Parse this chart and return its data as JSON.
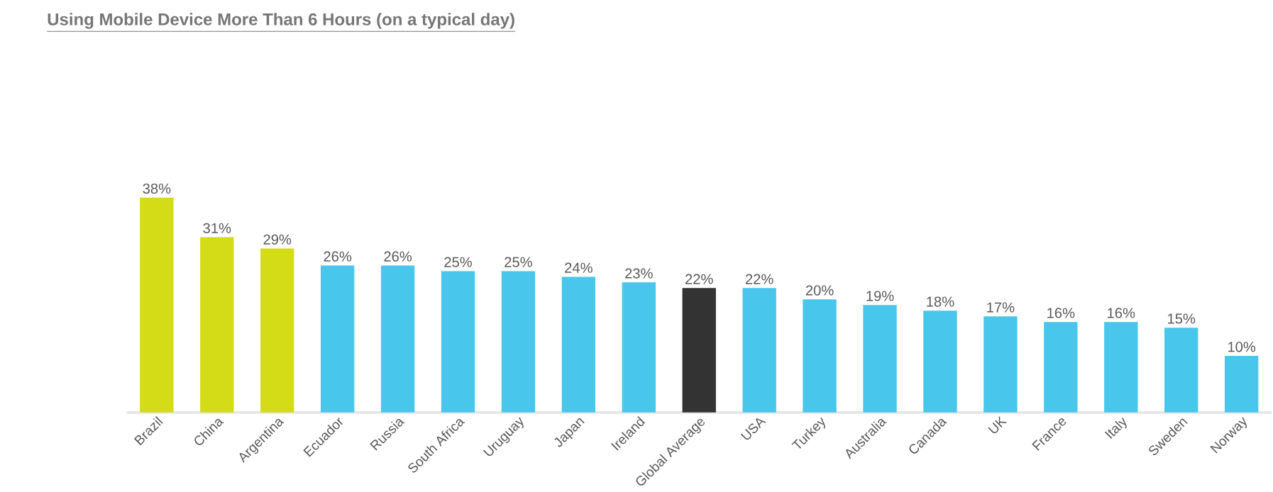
{
  "chart_data": {
    "type": "bar",
    "title": "Using Mobile Device More Than 6 Hours (on a typical day)",
    "categories": [
      "Brazil",
      "China",
      "Argentina",
      "Ecuador",
      "Russia",
      "South Africa",
      "Uruguay",
      "Japan",
      "Ireland",
      "Global Average",
      "USA",
      "Turkey",
      "Australia",
      "Canada",
      "UK",
      "France",
      "Italy",
      "Sweden",
      "Norway"
    ],
    "values": [
      38,
      31,
      29,
      26,
      26,
      25,
      25,
      24,
      23,
      22,
      22,
      20,
      19,
      18,
      17,
      16,
      16,
      15,
      10
    ],
    "value_labels": [
      "38%",
      "31%",
      "29%",
      "26%",
      "26%",
      "25%",
      "25%",
      "24%",
      "23%",
      "22%",
      "22%",
      "20%",
      "19%",
      "18%",
      "17%",
      "16%",
      "16%",
      "15%",
      "10%"
    ],
    "colors": [
      "#d4dc17",
      "#d4dc17",
      "#d4dc17",
      "#48c6ec",
      "#48c6ec",
      "#48c6ec",
      "#48c6ec",
      "#48c6ec",
      "#48c6ec",
      "#333333",
      "#48c6ec",
      "#48c6ec",
      "#48c6ec",
      "#48c6ec",
      "#48c6ec",
      "#48c6ec",
      "#48c6ec",
      "#48c6ec",
      "#48c6ec"
    ],
    "ylim": [
      0,
      38
    ],
    "tick_labels": "x"
  }
}
